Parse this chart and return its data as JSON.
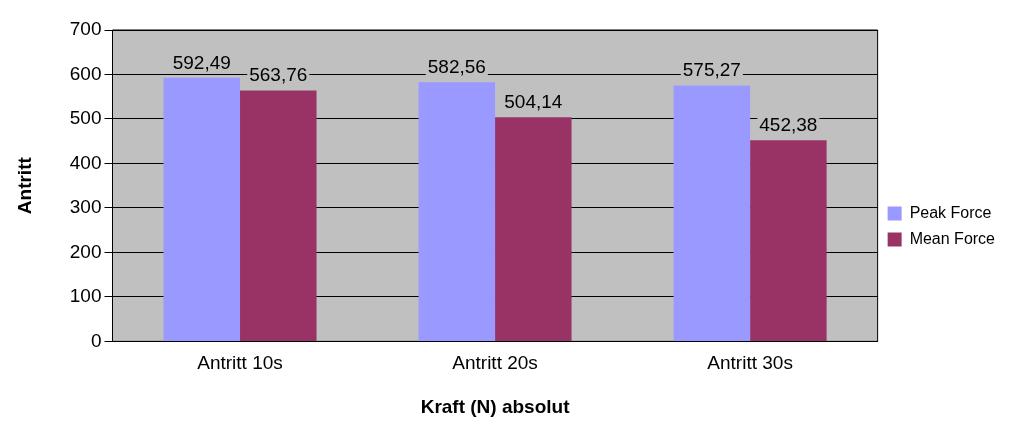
{
  "chart_data": {
    "type": "bar",
    "xlabel": "Kraft (N) absolut",
    "ylabel": "Antritt",
    "categories": [
      "Antritt 10s",
      "Antritt 20s",
      "Antritt 30s"
    ],
    "series": [
      {
        "name": "Peak Force",
        "color": "#9999ff",
        "values": [
          592.49,
          582.56,
          575.27
        ],
        "value_labels": [
          "592,49",
          "582,56",
          "575,27"
        ]
      },
      {
        "name": "Mean Force",
        "color": "#993366",
        "values": [
          563.76,
          504.14,
          452.38
        ],
        "value_labels": [
          "563,76",
          "504,14",
          "452,38"
        ]
      }
    ],
    "ylim": [
      0,
      700
    ],
    "yticks": [
      0,
      100,
      200,
      300,
      400,
      500,
      600,
      700
    ],
    "grid": "y",
    "legend": "right"
  }
}
